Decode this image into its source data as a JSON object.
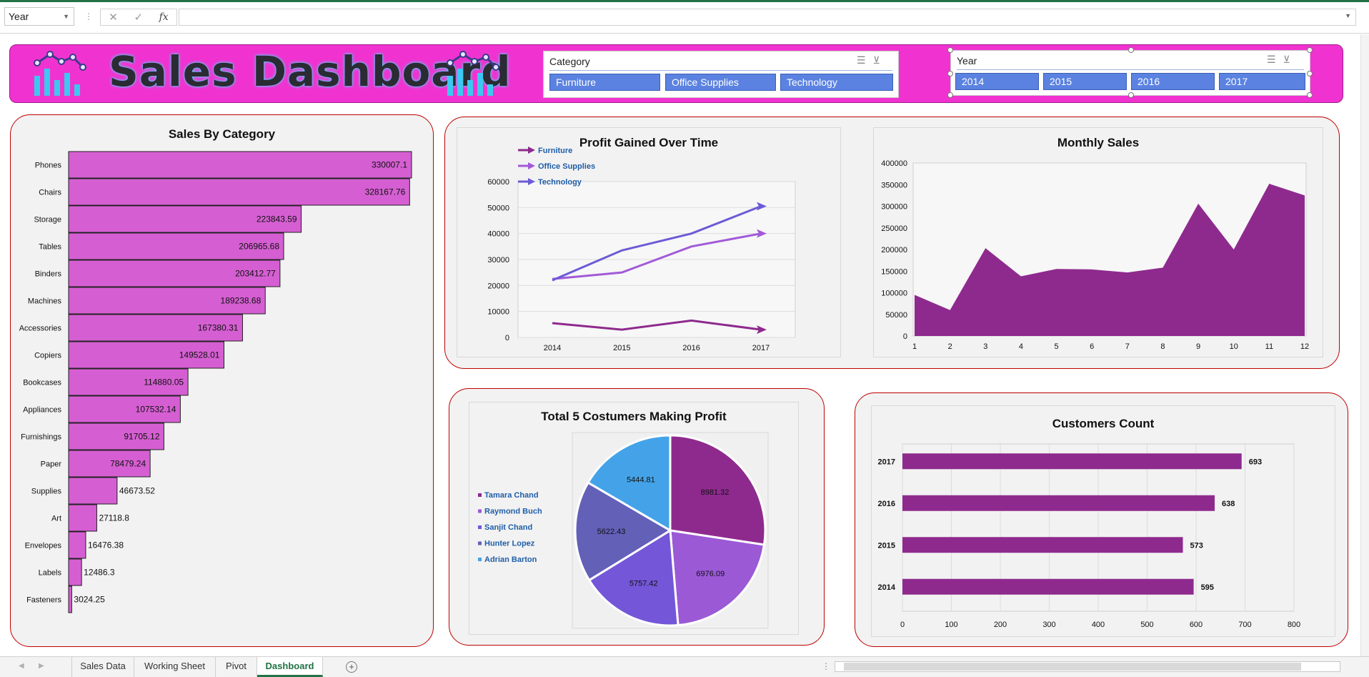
{
  "formula_bar": {
    "name_box": "Year",
    "cancel_icon": "✕",
    "enter_icon": "✓",
    "fx_label": "fx",
    "formula": ""
  },
  "banner": {
    "title": "Sales Dashboard",
    "background": "#f033d0"
  },
  "slicers": {
    "category": {
      "header": "Category",
      "items": [
        "Furniture",
        "Office Supplies",
        "Technology"
      ]
    },
    "year": {
      "header": "Year",
      "items": [
        "2014",
        "2015",
        "2016",
        "2017"
      ]
    }
  },
  "chart_data": [
    {
      "id": "sales_by_category",
      "type": "bar",
      "orientation": "horizontal",
      "title": "Sales By Category",
      "categories": [
        "Phones",
        "Chairs",
        "Storage",
        "Tables",
        "Binders",
        "Machines",
        "Accessories",
        "Copiers",
        "Bookcases",
        "Appliances",
        "Furnishings",
        "Paper",
        "Supplies",
        "Art",
        "Envelopes",
        "Labels",
        "Fasteners"
      ],
      "values": [
        330007.1,
        328167.76,
        223843.59,
        206965.68,
        203412.77,
        189238.68,
        167380.31,
        149528.01,
        114880.05,
        107532.14,
        91705.12,
        78479.24,
        46673.52,
        27118.8,
        16476.38,
        12486.3,
        3024.25
      ],
      "value_labels": [
        "330007.1",
        "328167.76",
        "223843.59",
        "206965.68",
        "203412.77",
        "189238.68",
        "167380.31",
        "149528.01",
        "114880.05",
        "107532.14",
        "91705.12",
        "78479.24",
        "46673.52",
        "27118.8",
        "16476.38",
        "12486.3",
        "3024.25"
      ],
      "color": "#d55fd2"
    },
    {
      "id": "profit_over_time",
      "type": "line",
      "title": "Profit Gained Over Time",
      "x": [
        "2014",
        "2015",
        "2016",
        "2017"
      ],
      "series": [
        {
          "name": "Furniture",
          "values": [
            5500,
            3000,
            6500,
            3000
          ],
          "color": "#8e2a8e"
        },
        {
          "name": "Office Supplies",
          "values": [
            22500,
            25000,
            35000,
            40000
          ],
          "color": "#a25ad8"
        },
        {
          "name": "Technology",
          "values": [
            22000,
            33500,
            40000,
            50500
          ],
          "color": "#6b5bd6"
        }
      ],
      "ylim": [
        0,
        60000
      ],
      "yticks": [
        "0",
        "10000",
        "20000",
        "30000",
        "40000",
        "50000",
        "60000"
      ],
      "grid": true,
      "legend": "top-left"
    },
    {
      "id": "monthly_sales",
      "type": "area",
      "title": "Monthly Sales",
      "x": [
        "1",
        "2",
        "3",
        "4",
        "5",
        "6",
        "7",
        "8",
        "9",
        "10",
        "11",
        "12"
      ],
      "values": [
        95000,
        60000,
        203000,
        138000,
        155000,
        154000,
        147000,
        158000,
        306000,
        200000,
        352000,
        325000
      ],
      "ylim": [
        0,
        400000
      ],
      "yticks": [
        "0",
        "50000",
        "100000",
        "150000",
        "200000",
        "250000",
        "300000",
        "350000",
        "400000"
      ],
      "color": "#8e2a8e"
    },
    {
      "id": "top5_customers",
      "type": "pie",
      "title": "Total 5 Costumers Making Profit",
      "labels": [
        "Tamara Chand",
        "Raymond Buch",
        "Sanjit Chand",
        "Hunter Lopez",
        "Adrian Barton"
      ],
      "values": [
        8981.32,
        6976.09,
        5757.42,
        5622.43,
        5444.81
      ],
      "value_labels": [
        "8981.32",
        "6976.09",
        "5757.42",
        "5622.43",
        "5444.81"
      ],
      "colors": [
        "#8e2a8e",
        "#9b59d6",
        "#7357d8",
        "#6360b8",
        "#44a3e8"
      ],
      "legend": "left"
    },
    {
      "id": "customers_count",
      "type": "bar",
      "orientation": "horizontal",
      "title": "Customers Count",
      "categories": [
        "2017",
        "2016",
        "2015",
        "2014"
      ],
      "values": [
        693,
        638,
        573,
        595
      ],
      "value_labels": [
        "693",
        "638",
        "573",
        "595"
      ],
      "xlim": [
        0,
        800
      ],
      "xticks": [
        "0",
        "100",
        "200",
        "300",
        "400",
        "500",
        "600",
        "700",
        "800"
      ],
      "grid": true,
      "color": "#8e2a8e"
    }
  ],
  "sheet_tabs": {
    "tabs": [
      "Sales Data",
      "Working Sheet",
      "Pivot",
      "Dashboard"
    ],
    "active": "Dashboard",
    "add_icon": "+"
  }
}
